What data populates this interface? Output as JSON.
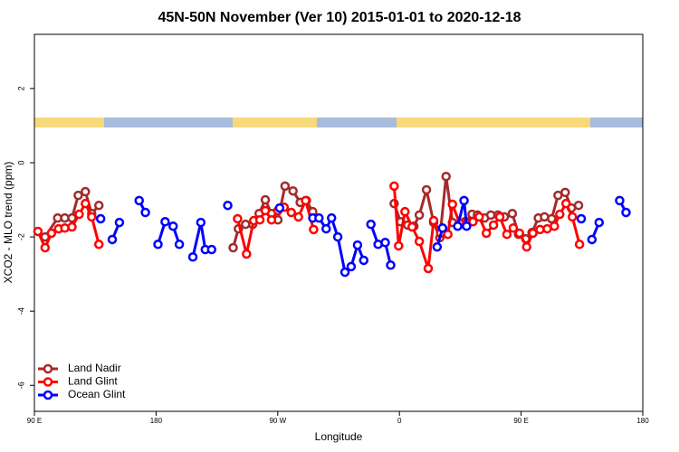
{
  "chart_data": {
    "type": "line",
    "title": "45N-50N November (Ver 10)   2015-01-01 to 2020-12-18",
    "x_label": "Longitude",
    "y_label": "XCO2 - MLO trend (ppm)",
    "xlim": [
      90,
      540
    ],
    "xticks": [
      {
        "value": 90,
        "label": "90 E"
      },
      {
        "value": 180,
        "label": "180"
      },
      {
        "value": 270,
        "label": "90 W"
      },
      {
        "value": 360,
        "label": "0"
      },
      {
        "value": 450,
        "label": "90 E"
      },
      {
        "value": 540,
        "label": "180"
      }
    ],
    "ylim": [
      -6.7,
      3.46
    ],
    "yticks": [
      2,
      0,
      -2,
      -4,
      -6
    ],
    "legend": "bottom-left",
    "series": [
      {
        "name": "Land Nadir",
        "color": "#a52a2a",
        "x": [
          97.9,
          107.2,
          112.5,
          117.8,
          122.4,
          127.7,
          132.4,
          137.7,
          null,
          237.0,
          240.9,
          246.2,
          251.5,
          256.2,
          260.8,
          265.4,
          270.1,
          275.4,
          281.3,
          286.6,
          291.2,
          295.9,
          null,
          356.1,
          360.8,
          366.1,
          370.7,
          374.7,
          380.0,
          385.3,
          389.9,
          394.5,
          399.2,
          403.8,
          408.4,
          413.7,
          417.7,
          423.0,
          427.6,
          432.9,
          437.6,
          443.5,
          448.1,
          453.4,
          458.1,
          462.7,
          467.3,
          472.6,
          477.3,
          482.6,
          487.2,
          492.5
        ],
        "values": [
          -2.0,
          -1.49,
          -1.49,
          -1.49,
          -0.88,
          -0.78,
          -1.37,
          -1.15,
          null,
          -2.29,
          -1.78,
          -1.66,
          -1.66,
          -1.37,
          -1.0,
          -1.37,
          -1.54,
          -0.63,
          -0.76,
          -1.07,
          -1.02,
          -1.32,
          null,
          -1.1,
          -1.59,
          -1.68,
          -1.71,
          -1.41,
          -0.73,
          -1.61,
          -2.02,
          -0.37,
          -1.61,
          -1.68,
          -1.59,
          -1.39,
          -1.41,
          -1.49,
          -1.41,
          -1.41,
          -1.46,
          -1.37,
          -1.93,
          -2.05,
          -1.88,
          -1.49,
          -1.46,
          -1.51,
          -0.88,
          -0.8,
          -1.22,
          -1.15
        ]
      },
      {
        "name": "Land Glint",
        "color": "#ff0000",
        "x": [
          92.6,
          97.9,
          102.6,
          107.9,
          112.5,
          117.8,
          123.1,
          127.7,
          132.4,
          137.7,
          null,
          240.3,
          246.9,
          252.2,
          256.8,
          260.8,
          265.4,
          270.1,
          274.7,
          280.0,
          285.3,
          290.6,
          296.5,
          null,
          356.1,
          359.4,
          364.1,
          369.4,
          374.7,
          381.3,
          385.3,
          390.5,
          395.8,
          399.2,
          404.5,
          409.7,
          414.4,
          419.0,
          424.3,
          429.6,
          434.2,
          439.5,
          444.2,
          448.8,
          454.1,
          458.7,
          464.0,
          469.3,
          474.6,
          478.6,
          483.2,
          487.9,
          493.2
        ],
        "values": [
          -1.85,
          -2.29,
          -1.9,
          -1.78,
          -1.76,
          -1.73,
          -1.39,
          -1.1,
          -1.46,
          -2.2,
          null,
          -1.51,
          -2.46,
          -1.56,
          -1.54,
          -1.29,
          -1.54,
          -1.29,
          -1.2,
          -1.34,
          -1.46,
          -1.02,
          -1.8,
          null,
          -0.63,
          -2.24,
          -1.32,
          -1.73,
          -2.12,
          -2.85,
          -1.56,
          -1.9,
          -1.93,
          -1.12,
          -1.63,
          -1.63,
          -1.59,
          -1.46,
          -1.9,
          -1.68,
          -1.46,
          -1.93,
          -1.76,
          -1.9,
          -2.27,
          -1.9,
          -1.8,
          -1.78,
          -1.71,
          -1.39,
          -1.1,
          -1.46,
          -2.2
        ]
      },
      {
        "name": "Ocean Glint",
        "color": "#0000ff",
        "x": [
          139.0,
          null,
          147.6,
          152.9,
          null,
          167.5,
          172.1,
          null,
          181.4,
          186.7,
          192.6,
          197.2,
          null,
          207.2,
          213.1,
          216.4,
          221.1,
          null,
          233.0,
          null,
          271.4,
          null,
          295.9,
          300.5,
          305.8,
          309.8,
          314.4,
          319.7,
          324.3,
          329.0,
          333.6,
          null,
          338.9,
          344.2,
          349.5,
          353.5,
          null,
          387.9,
          391.9,
          null,
          403.1,
          407.8,
          409.7,
          null,
          494.5,
          null,
          502.4,
          507.7,
          null,
          522.9,
          527.6
        ],
        "values": [
          -1.51,
          null,
          -2.07,
          -1.61,
          null,
          -1.02,
          -1.34,
          null,
          -2.2,
          -1.59,
          -1.71,
          -2.2,
          null,
          -2.54,
          -1.61,
          -2.34,
          -2.34,
          null,
          -1.15,
          null,
          -1.22,
          null,
          -1.49,
          -1.49,
          -1.78,
          -1.49,
          -2.0,
          -2.95,
          -2.8,
          -2.22,
          -2.63,
          null,
          -1.66,
          -2.2,
          -2.15,
          -2.76,
          null,
          -2.27,
          -1.76,
          null,
          -1.71,
          -1.02,
          -1.71,
          null,
          -1.51,
          null,
          -2.07,
          -1.61,
          null,
          -1.02,
          -1.34
        ]
      }
    ]
  }
}
